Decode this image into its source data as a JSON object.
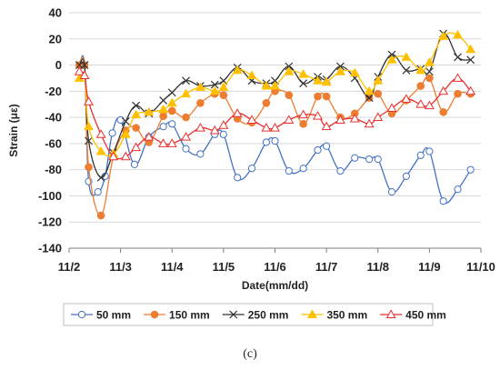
{
  "caption": "(c)",
  "chart_data": {
    "type": "line",
    "title": "",
    "xlabel": "Date(mm/dd)",
    "ylabel": "Strain (με)",
    "xlim": [
      2.0,
      10.0
    ],
    "ylim": [
      -140,
      40
    ],
    "x_ticks": [
      {
        "value": 2,
        "label": "11/2"
      },
      {
        "value": 3,
        "label": "11/3"
      },
      {
        "value": 4,
        "label": "11/4"
      },
      {
        "value": 5,
        "label": "11/5"
      },
      {
        "value": 6,
        "label": "11/6"
      },
      {
        "value": 7,
        "label": "11/7"
      },
      {
        "value": 8,
        "label": "11/8"
      },
      {
        "value": 9,
        "label": "11/9"
      },
      {
        "value": 10,
        "label": "11/10"
      }
    ],
    "y_ticks": [
      -140,
      -120,
      -100,
      -80,
      -60,
      -40,
      -20,
      0,
      20,
      40
    ],
    "grid": "horizontal",
    "legend_position": "bottom",
    "series": [
      {
        "name": "50 mm",
        "color": "#4472C4",
        "marker": "circle-open",
        "points": [
          [
            2.2,
            0
          ],
          [
            2.3,
            0
          ],
          [
            2.38,
            -89
          ],
          [
            2.56,
            -97
          ],
          [
            2.7,
            -85
          ],
          [
            2.84,
            -52
          ],
          [
            3.0,
            -42
          ],
          [
            3.27,
            -76
          ],
          [
            3.55,
            -55
          ],
          [
            3.83,
            -47
          ],
          [
            4.0,
            -45
          ],
          [
            4.27,
            -64
          ],
          [
            4.55,
            -68
          ],
          [
            4.83,
            -53
          ],
          [
            5.0,
            -53
          ],
          [
            5.27,
            -86
          ],
          [
            5.55,
            -79
          ],
          [
            5.83,
            -59
          ],
          [
            6.0,
            -58
          ],
          [
            6.27,
            -81
          ],
          [
            6.55,
            -79
          ],
          [
            6.83,
            -65
          ],
          [
            7.0,
            -62
          ],
          [
            7.27,
            -81
          ],
          [
            7.55,
            -71
          ],
          [
            7.83,
            -72
          ],
          [
            8.0,
            -72
          ],
          [
            8.27,
            -97
          ],
          [
            8.55,
            -85
          ],
          [
            8.83,
            -69
          ],
          [
            9.0,
            -66
          ],
          [
            9.27,
            -104
          ],
          [
            9.55,
            -95
          ],
          [
            9.8,
            -80
          ]
        ]
      },
      {
        "name": "150 mm",
        "color": "#ED7D31",
        "marker": "circle-filled",
        "points": [
          [
            2.2,
            0
          ],
          [
            2.3,
            0
          ],
          [
            2.38,
            -78
          ],
          [
            2.62,
            -115
          ],
          [
            2.86,
            -70
          ],
          [
            3.1,
            -50
          ],
          [
            3.3,
            -48
          ],
          [
            3.55,
            -59
          ],
          [
            3.83,
            -39
          ],
          [
            4.0,
            -35
          ],
          [
            4.27,
            -40
          ],
          [
            4.55,
            -29
          ],
          [
            4.83,
            -22
          ],
          [
            5.0,
            -23
          ],
          [
            5.27,
            -41
          ],
          [
            5.55,
            -44
          ],
          [
            5.83,
            -29
          ],
          [
            6.0,
            -20
          ],
          [
            6.27,
            -23
          ],
          [
            6.55,
            -45
          ],
          [
            6.83,
            -24
          ],
          [
            7.0,
            -24
          ],
          [
            7.27,
            -40
          ],
          [
            7.55,
            -37
          ],
          [
            7.83,
            -25
          ],
          [
            8.0,
            -22
          ],
          [
            8.27,
            -37
          ],
          [
            8.55,
            -27
          ],
          [
            8.83,
            -16
          ],
          [
            9.0,
            -10
          ],
          [
            9.27,
            -36
          ],
          [
            9.55,
            -22
          ],
          [
            9.8,
            -22
          ]
        ]
      },
      {
        "name": "250 mm",
        "color": "#333333",
        "marker": "x",
        "points": [
          [
            2.2,
            0
          ],
          [
            2.3,
            0
          ],
          [
            2.38,
            -58
          ],
          [
            2.62,
            -86
          ],
          [
            2.86,
            -67
          ],
          [
            3.1,
            -43
          ],
          [
            3.3,
            -31
          ],
          [
            3.55,
            -37
          ],
          [
            3.83,
            -27
          ],
          [
            4.0,
            -21
          ],
          [
            4.27,
            -12
          ],
          [
            4.55,
            -16
          ],
          [
            4.83,
            -15
          ],
          [
            5.0,
            -12
          ],
          [
            5.27,
            -2
          ],
          [
            5.55,
            -12
          ],
          [
            5.83,
            -14
          ],
          [
            6.0,
            -12
          ],
          [
            6.27,
            -1
          ],
          [
            6.55,
            -14
          ],
          [
            6.83,
            -9
          ],
          [
            7.0,
            -11
          ],
          [
            7.27,
            -1
          ],
          [
            7.55,
            -10
          ],
          [
            7.83,
            -25
          ],
          [
            8.0,
            -9
          ],
          [
            8.27,
            8
          ],
          [
            8.55,
            -4
          ],
          [
            8.83,
            -3
          ],
          [
            9.0,
            -5
          ],
          [
            9.27,
            24
          ],
          [
            9.55,
            6
          ],
          [
            9.8,
            4
          ]
        ]
      },
      {
        "name": "350 mm",
        "color": "#FFC000",
        "marker": "triangle-filled",
        "points": [
          [
            2.2,
            -10
          ],
          [
            2.3,
            -8
          ],
          [
            2.38,
            -47
          ],
          [
            2.62,
            -66
          ],
          [
            2.86,
            -68
          ],
          [
            3.1,
            -53
          ],
          [
            3.3,
            -38
          ],
          [
            3.55,
            -36
          ],
          [
            3.83,
            -34
          ],
          [
            4.0,
            -29
          ],
          [
            4.27,
            -22
          ],
          [
            4.55,
            -17
          ],
          [
            4.83,
            -20
          ],
          [
            5.0,
            -17
          ],
          [
            5.27,
            -4
          ],
          [
            5.55,
            -8
          ],
          [
            5.83,
            -16
          ],
          [
            6.0,
            -16
          ],
          [
            6.27,
            -5
          ],
          [
            6.55,
            -7
          ],
          [
            6.83,
            -12
          ],
          [
            7.0,
            -13
          ],
          [
            7.27,
            -5
          ],
          [
            7.55,
            -6
          ],
          [
            7.83,
            -20
          ],
          [
            8.0,
            -12
          ],
          [
            8.27,
            4
          ],
          [
            8.55,
            6
          ],
          [
            8.83,
            -4
          ],
          [
            9.0,
            2
          ],
          [
            9.27,
            22
          ],
          [
            9.55,
            23
          ],
          [
            9.8,
            12
          ]
        ]
      },
      {
        "name": "450 mm",
        "color": "#E83030",
        "marker": "triangle-open",
        "points": [
          [
            2.2,
            -5
          ],
          [
            2.3,
            -8
          ],
          [
            2.38,
            -28
          ],
          [
            2.62,
            -53
          ],
          [
            2.86,
            -70
          ],
          [
            3.1,
            -70
          ],
          [
            3.3,
            -63
          ],
          [
            3.55,
            -55
          ],
          [
            3.83,
            -60
          ],
          [
            4.0,
            -60
          ],
          [
            4.27,
            -55
          ],
          [
            4.55,
            -48
          ],
          [
            4.83,
            -50
          ],
          [
            5.0,
            -46
          ],
          [
            5.27,
            -37
          ],
          [
            5.55,
            -42
          ],
          [
            5.83,
            -48
          ],
          [
            6.0,
            -48
          ],
          [
            6.27,
            -42
          ],
          [
            6.55,
            -38
          ],
          [
            6.83,
            -39
          ],
          [
            7.0,
            -47
          ],
          [
            7.27,
            -42
          ],
          [
            7.55,
            -41
          ],
          [
            7.83,
            -45
          ],
          [
            8.0,
            -40
          ],
          [
            8.27,
            -33
          ],
          [
            8.55,
            -26
          ],
          [
            8.83,
            -30
          ],
          [
            9.0,
            -31
          ],
          [
            9.27,
            -20
          ],
          [
            9.55,
            -10
          ],
          [
            9.8,
            -20
          ]
        ]
      }
    ]
  }
}
